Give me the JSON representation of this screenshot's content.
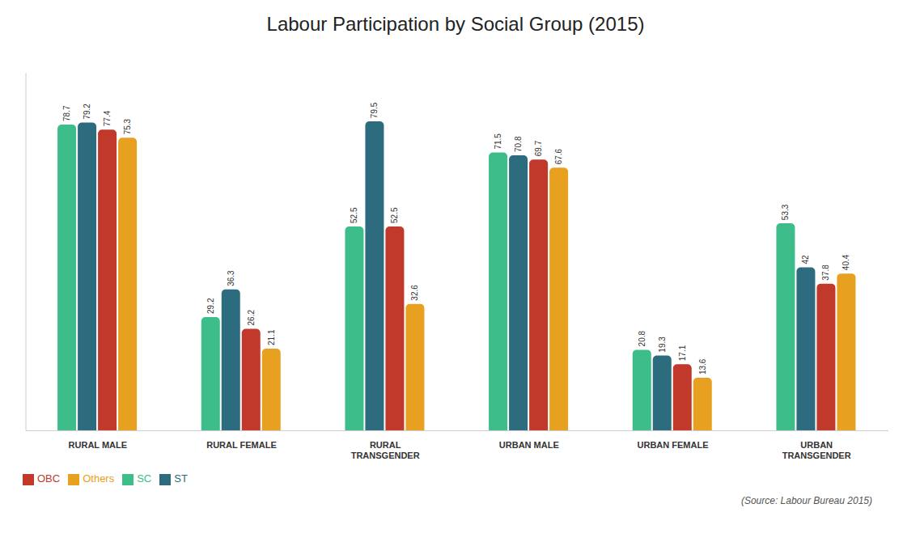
{
  "chart_data": {
    "type": "bar",
    "title": "Labour Participation by Social Group (2015)",
    "categories": [
      "RURAL MALE",
      "RURAL FEMALE",
      "RURAL\nTRANSGENDER",
      "URBAN MALE",
      "URBAN FEMALE",
      "URBAN\nTRANSGENDER"
    ],
    "series": [
      {
        "name": "SC",
        "color": "#3DBD8A",
        "values": [
          78.7,
          29.2,
          52.5,
          71.5,
          20.8,
          53.3
        ]
      },
      {
        "name": "ST",
        "color": "#2D6B7F",
        "values": [
          79.2,
          36.3,
          79.5,
          70.8,
          19.3,
          42.0
        ]
      },
      {
        "name": "OBC",
        "color": "#C0392B",
        "values": [
          77.4,
          26.2,
          52.5,
          69.7,
          17.1,
          37.8
        ]
      },
      {
        "name": "Others",
        "color": "#E8A020",
        "values": [
          75.3,
          21.1,
          32.6,
          67.6,
          13.6,
          40.4
        ]
      }
    ],
    "ylim": [
      0,
      92
    ],
    "tick_labels": "x",
    "data_labels": true,
    "legend": "lower left",
    "grid": false,
    "annotations": [
      "(Source: Labour Bureau 2015)"
    ]
  }
}
